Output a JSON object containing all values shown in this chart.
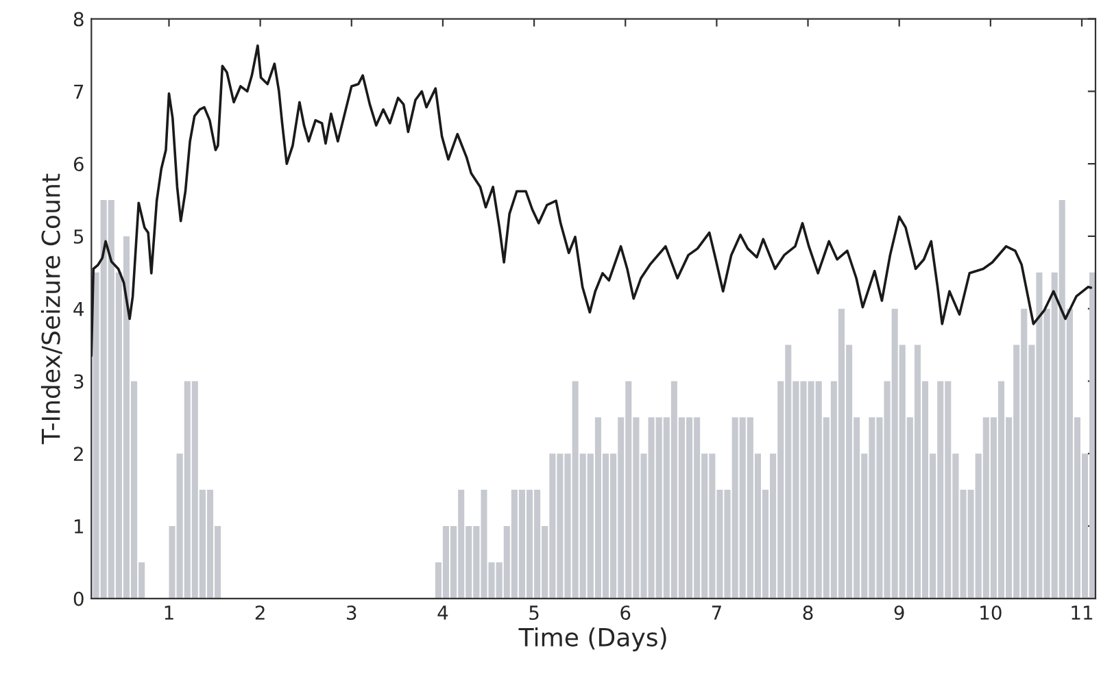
{
  "chart_data": {
    "type": "histogram",
    "xlabel": "Time (Days)",
    "ylabel": "T-Index/Seizure Count",
    "xlim": [
      0.15,
      11.15
    ],
    "xticks": [
      1,
      2,
      3,
      4,
      5,
      6,
      7,
      8,
      9,
      10,
      11
    ],
    "ylim": [
      0,
      8
    ],
    "yticks": [
      0,
      1,
      2,
      3,
      4,
      5,
      6,
      7,
      8
    ],
    "grid": false,
    "legend": false,
    "series": [
      {
        "color": "#c6c9cf",
        "bins": [
          0.167,
          0.25,
          0.333,
          0.417,
          0.5,
          0.583,
          0.667,
          0.75,
          0.833,
          0.917,
          1,
          1.083,
          1.167,
          1.25,
          1.333,
          1.417,
          1.5,
          1.583,
          1.667,
          1.75,
          1.833,
          1.917,
          2,
          2.083,
          2.167,
          2.25,
          2.333,
          2.417,
          2.5,
          2.583,
          2.667,
          2.75,
          2.833,
          2.917,
          3,
          3.083,
          3.167,
          3.25,
          3.333,
          3.417,
          3.5,
          3.583,
          3.667,
          3.75,
          3.833,
          3.917,
          4,
          4.083,
          4.167,
          4.25,
          4.333,
          4.417,
          4.5,
          4.583,
          4.667,
          4.75,
          4.833,
          4.917,
          5,
          5.083,
          5.167,
          5.25,
          5.333,
          5.417,
          5.5,
          5.583,
          5.667,
          5.75,
          5.833,
          5.917,
          6,
          6.083,
          6.167,
          6.25,
          6.333,
          6.417,
          6.5,
          6.583,
          6.667,
          6.75,
          6.833,
          6.917,
          7,
          7.083,
          7.167,
          7.25,
          7.333,
          7.417,
          7.5,
          7.583,
          7.667,
          7.75,
          7.833,
          7.917,
          8,
          8.083,
          8.167,
          8.25,
          8.333,
          8.417,
          8.5,
          8.583,
          8.667,
          8.75,
          8.833,
          8.917,
          9,
          9.083,
          9.167,
          9.25,
          9.333,
          9.417,
          9.5,
          9.583,
          9.667,
          9.75,
          9.833,
          9.917,
          10,
          10.083,
          10.167,
          10.25,
          10.333,
          10.417,
          10.5,
          10.583,
          10.667,
          10.75,
          10.833,
          10.917,
          11,
          11.083,
          11.167
        ],
        "values": [
          4.5,
          5.5,
          5.5,
          4.5,
          5,
          3,
          0.5,
          0,
          0,
          0,
          1,
          2,
          3,
          3,
          1.5,
          1.5,
          1,
          0,
          0,
          0,
          0,
          0,
          0,
          0,
          0,
          0,
          0,
          0,
          0,
          0,
          0,
          0,
          0,
          0,
          0,
          0,
          0,
          0,
          0,
          0,
          0,
          0,
          0,
          0,
          0,
          0.5,
          1,
          1,
          1.5,
          1,
          1,
          1.5,
          0.5,
          0.5,
          1,
          1.5,
          1.5,
          1.5,
          1.5,
          1,
          2,
          2,
          2,
          3,
          2,
          2,
          2.5,
          2,
          2,
          2.5,
          3,
          2.5,
          2,
          2.5,
          2.5,
          2.5,
          3,
          2.5,
          2.5,
          2.5,
          2,
          2,
          1.5,
          1.5,
          2.5,
          2.5,
          2.5,
          2,
          1.5,
          2,
          3,
          3.5,
          3,
          3,
          3,
          3,
          2.5,
          3,
          4,
          3.5,
          2.5,
          2,
          2.5,
          2.5,
          3,
          4,
          3.5,
          2.5,
          3.5,
          3,
          2,
          3,
          3,
          2,
          1.5,
          1.5,
          2,
          2.5,
          2.5,
          3,
          2.5,
          3.5,
          4,
          3.5,
          4.5,
          4,
          4.5,
          5.5,
          4,
          2.5,
          2,
          4.5
        ]
      },
      {
        "type": "line",
        "color": "#1a1a1a",
        "x": [
          0.15,
          0.172,
          0.22,
          0.27,
          0.306,
          0.37,
          0.445,
          0.505,
          0.569,
          0.603,
          0.668,
          0.732,
          0.772,
          0.807,
          0.866,
          0.916,
          0.966,
          1.0,
          1.04,
          1.09,
          1.129,
          1.18,
          1.23,
          1.28,
          1.337,
          1.387,
          1.446,
          1.51,
          1.536,
          1.585,
          1.635,
          1.71,
          1.784,
          1.858,
          1.908,
          1.972,
          2.007,
          2.08,
          2.156,
          2.205,
          2.24,
          2.29,
          2.355,
          2.43,
          2.48,
          2.53,
          2.605,
          2.676,
          2.716,
          2.776,
          2.85,
          2.925,
          3.0,
          3.075,
          3.123,
          3.2,
          3.27,
          3.348,
          3.42,
          3.51,
          3.57,
          3.62,
          3.7,
          3.77,
          3.82,
          3.92,
          3.99,
          4.06,
          4.16,
          4.26,
          4.31,
          4.41,
          4.47,
          4.55,
          4.62,
          4.67,
          4.73,
          4.81,
          4.91,
          4.98,
          5.05,
          5.14,
          5.24,
          5.29,
          5.38,
          5.45,
          5.53,
          5.61,
          5.67,
          5.75,
          5.82,
          5.95,
          6.02,
          6.09,
          6.17,
          6.27,
          6.44,
          6.57,
          6.69,
          6.79,
          6.92,
          6.99,
          7.07,
          7.16,
          7.26,
          7.34,
          7.44,
          7.51,
          7.64,
          7.74,
          7.86,
          7.94,
          8.01,
          8.11,
          8.23,
          8.32,
          8.43,
          8.53,
          8.6,
          8.73,
          8.81,
          8.9,
          9.0,
          9.07,
          9.18,
          9.27,
          9.35,
          9.42,
          9.47,
          9.55,
          9.66,
          9.77,
          9.92,
          10.02,
          10.17,
          10.27,
          10.34,
          10.47,
          10.59,
          10.69,
          10.82,
          10.94,
          11.07,
          11.1
        ],
        "values": [
          3.35,
          4.55,
          4.6,
          4.7,
          4.93,
          4.65,
          4.55,
          4.36,
          3.86,
          4.17,
          5.46,
          5.12,
          5.05,
          4.49,
          5.49,
          5.93,
          6.19,
          6.97,
          6.63,
          5.68,
          5.21,
          5.62,
          6.31,
          6.66,
          6.75,
          6.78,
          6.6,
          6.19,
          6.25,
          7.35,
          7.26,
          6.85,
          7.07,
          7.0,
          7.22,
          7.63,
          7.19,
          7.1,
          7.38,
          7.0,
          6.56,
          6.0,
          6.25,
          6.85,
          6.53,
          6.31,
          6.6,
          6.56,
          6.28,
          6.69,
          6.31,
          6.69,
          7.07,
          7.1,
          7.22,
          6.82,
          6.53,
          6.75,
          6.56,
          6.91,
          6.82,
          6.44,
          6.88,
          7.0,
          6.78,
          7.04,
          6.38,
          6.06,
          6.41,
          6.09,
          5.87,
          5.68,
          5.4,
          5.68,
          5.12,
          4.64,
          5.31,
          5.62,
          5.62,
          5.37,
          5.18,
          5.43,
          5.49,
          5.18,
          4.77,
          4.99,
          4.3,
          3.95,
          4.24,
          4.49,
          4.39,
          4.86,
          4.55,
          4.14,
          4.42,
          4.61,
          4.86,
          4.42,
          4.74,
          4.83,
          5.05,
          4.68,
          4.24,
          4.74,
          5.02,
          4.83,
          4.71,
          4.96,
          4.55,
          4.74,
          4.86,
          5.18,
          4.86,
          4.49,
          4.93,
          4.68,
          4.8,
          4.42,
          4.02,
          4.52,
          4.11,
          4.74,
          5.27,
          5.12,
          4.55,
          4.68,
          4.93,
          4.3,
          3.79,
          4.24,
          3.92,
          4.49,
          4.55,
          4.64,
          4.86,
          4.8,
          4.61,
          3.79,
          3.98,
          4.24,
          3.86,
          4.17,
          4.3,
          4.29
        ]
      }
    ]
  }
}
